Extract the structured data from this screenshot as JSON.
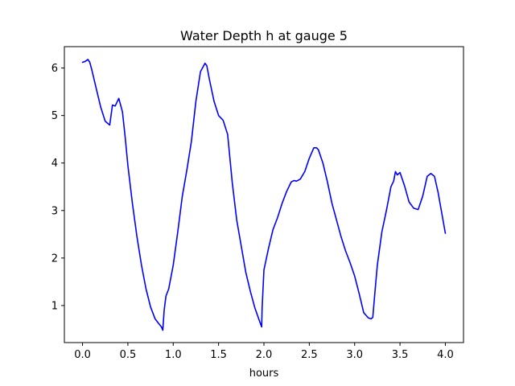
{
  "chart_data": {
    "type": "line",
    "title": "Water Depth h at gauge 5",
    "xlabel": "hours",
    "ylabel": "",
    "xlim": [
      -0.2,
      4.2
    ],
    "ylim": [
      0.22,
      6.45
    ],
    "xticks": [
      0.0,
      0.5,
      1.0,
      1.5,
      2.0,
      2.5,
      3.0,
      3.5,
      4.0
    ],
    "xtick_labels": [
      "0.0",
      "0.5",
      "1.0",
      "1.5",
      "2.0",
      "2.5",
      "3.0",
      "3.5",
      "4.0"
    ],
    "yticks": [
      1,
      2,
      3,
      4,
      5,
      6
    ],
    "ytick_labels": [
      "1",
      "2",
      "3",
      "4",
      "5",
      "6"
    ],
    "grid": false,
    "legend": "none",
    "series": [
      {
        "color": "#0000ff",
        "x": [
          0.0,
          0.03,
          0.06,
          0.08,
          0.1,
          0.12,
          0.15,
          0.2,
          0.25,
          0.3,
          0.33,
          0.36,
          0.4,
          0.44,
          0.47,
          0.5,
          0.55,
          0.6,
          0.65,
          0.7,
          0.75,
          0.8,
          0.84,
          0.87,
          0.885,
          0.9,
          0.92,
          0.95,
          1.0,
          1.05,
          1.1,
          1.15,
          1.2,
          1.25,
          1.3,
          1.35,
          1.37,
          1.4,
          1.45,
          1.5,
          1.55,
          1.6,
          1.65,
          1.7,
          1.75,
          1.8,
          1.85,
          1.9,
          1.95,
          1.975,
          1.98,
          2.0,
          2.05,
          2.1,
          2.15,
          2.2,
          2.25,
          2.3,
          2.33,
          2.36,
          2.4,
          2.45,
          2.5,
          2.55,
          2.58,
          2.6,
          2.65,
          2.7,
          2.75,
          2.8,
          2.85,
          2.9,
          2.95,
          3.0,
          3.05,
          3.1,
          3.15,
          3.18,
          3.2,
          3.22,
          3.25,
          3.3,
          3.35,
          3.4,
          3.43,
          3.45,
          3.47,
          3.5,
          3.55,
          3.6,
          3.65,
          3.7,
          3.75,
          3.8,
          3.84,
          3.88,
          3.92,
          3.96,
          4.0
        ],
        "y": [
          6.12,
          6.14,
          6.18,
          6.12,
          5.98,
          5.82,
          5.58,
          5.18,
          4.88,
          4.8,
          5.22,
          5.2,
          5.36,
          5.08,
          4.55,
          3.95,
          3.15,
          2.45,
          1.85,
          1.35,
          0.97,
          0.72,
          0.62,
          0.55,
          0.48,
          0.9,
          1.2,
          1.35,
          1.85,
          2.55,
          3.3,
          3.85,
          4.45,
          5.3,
          5.92,
          6.1,
          6.05,
          5.75,
          5.3,
          5.0,
          4.9,
          4.6,
          3.6,
          2.8,
          2.25,
          1.7,
          1.3,
          0.95,
          0.68,
          0.55,
          0.95,
          1.75,
          2.2,
          2.6,
          2.85,
          3.15,
          3.4,
          3.6,
          3.63,
          3.62,
          3.66,
          3.82,
          4.1,
          4.32,
          4.32,
          4.28,
          4.0,
          3.6,
          3.15,
          2.8,
          2.45,
          2.15,
          1.9,
          1.62,
          1.25,
          0.85,
          0.74,
          0.72,
          0.75,
          1.2,
          1.85,
          2.55,
          3.0,
          3.5,
          3.62,
          3.82,
          3.75,
          3.8,
          3.52,
          3.18,
          3.05,
          3.02,
          3.3,
          3.72,
          3.78,
          3.72,
          3.38,
          2.95,
          2.52
        ]
      }
    ]
  }
}
